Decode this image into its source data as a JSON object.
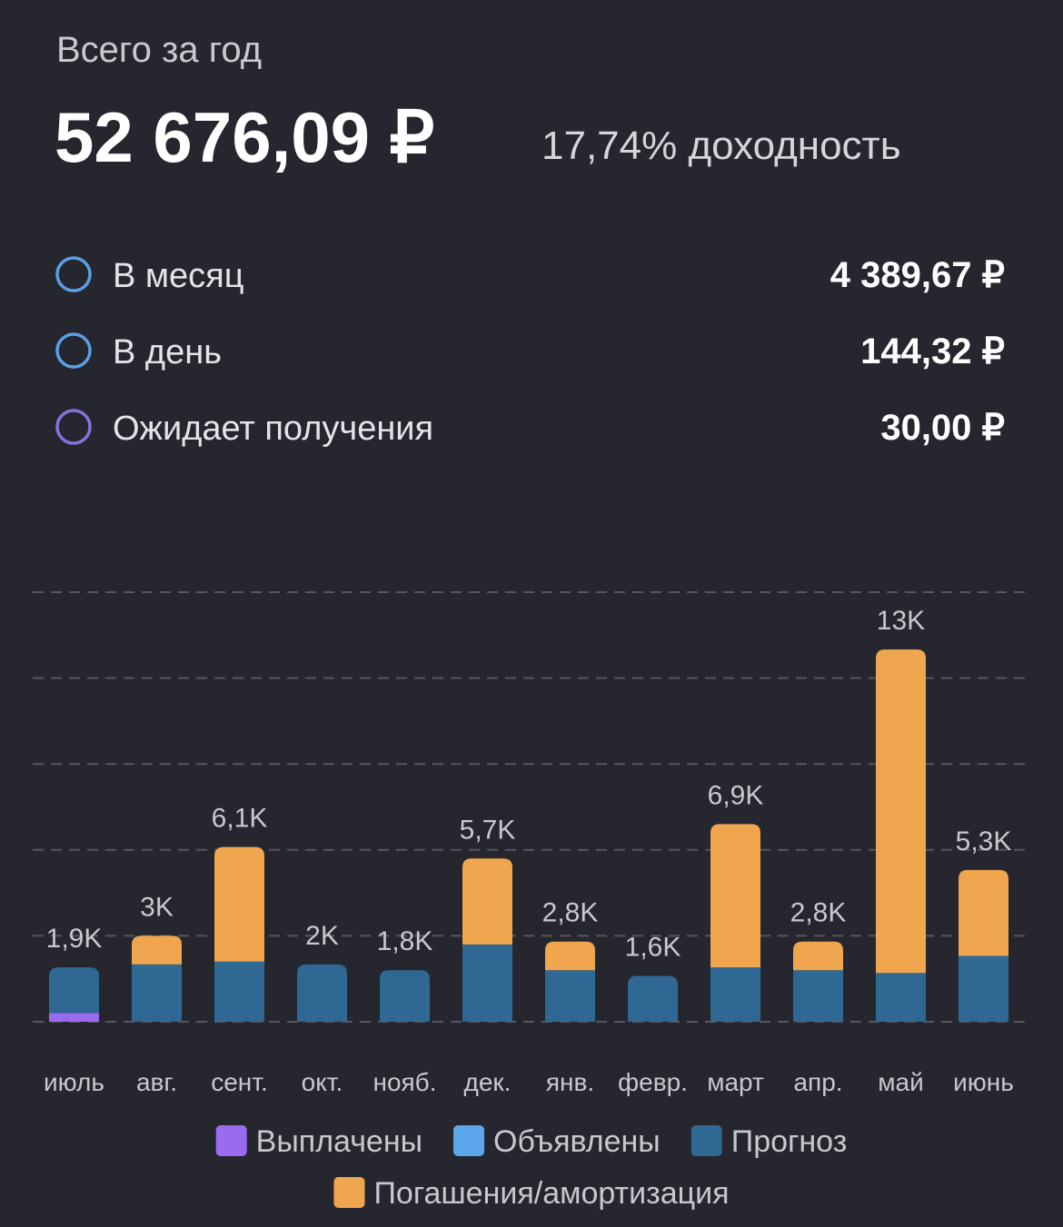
{
  "header": {
    "title": "Всего за год",
    "total": "52 676,09 ₽",
    "yield": "17,74% доходность"
  },
  "summary": [
    {
      "label": "В месяц",
      "value": "4 389,67 ₽",
      "color": "#5b9fe6"
    },
    {
      "label": "В день",
      "value": "144,32 ₽",
      "color": "#5b9fe6"
    },
    {
      "label": "Ожидает получения",
      "value": "30,00 ₽",
      "color": "#8a70dd"
    }
  ],
  "chart_data": {
    "type": "stacked-bar",
    "categories": [
      "июль",
      "авг.",
      "сент.",
      "окт.",
      "нояб.",
      "дек.",
      "янв.",
      "февр.",
      "март",
      "апр.",
      "май",
      "июнь"
    ],
    "series": [
      {
        "name": "Выплачены",
        "color": "#9a6bef",
        "values": [
          300,
          0,
          0,
          0,
          0,
          0,
          0,
          0,
          0,
          0,
          0,
          0
        ]
      },
      {
        "name": "Объявлены",
        "color": "#5ba6ec",
        "values": [
          0,
          0,
          0,
          0,
          0,
          0,
          0,
          0,
          0,
          0,
          0,
          0
        ]
      },
      {
        "name": "Прогноз",
        "color": "#2e6893",
        "values": [
          1600,
          2000,
          2100,
          2000,
          1800,
          2700,
          1800,
          1600,
          1900,
          1800,
          1700,
          2300
        ]
      },
      {
        "name": "Погашения/амортизация",
        "color": "#efa64e",
        "values": [
          0,
          1000,
          4000,
          0,
          0,
          3000,
          1000,
          0,
          5000,
          1000,
          11300,
          3000
        ]
      }
    ],
    "totals": [
      1900,
      3000,
      6100,
      2000,
      1800,
      5700,
      2800,
      1600,
      6900,
      2800,
      13000,
      5300
    ],
    "total_labels": [
      "1,9K",
      "3K",
      "6,1K",
      "2K",
      "1,8K",
      "5,7K",
      "2,8K",
      "1,6K",
      "6,9K",
      "2,8K",
      "13K",
      "5,3K"
    ],
    "ylim": [
      0,
      15000
    ],
    "yticks": [
      0,
      3000,
      6000,
      9000,
      12000,
      15000
    ],
    "grid": true
  }
}
